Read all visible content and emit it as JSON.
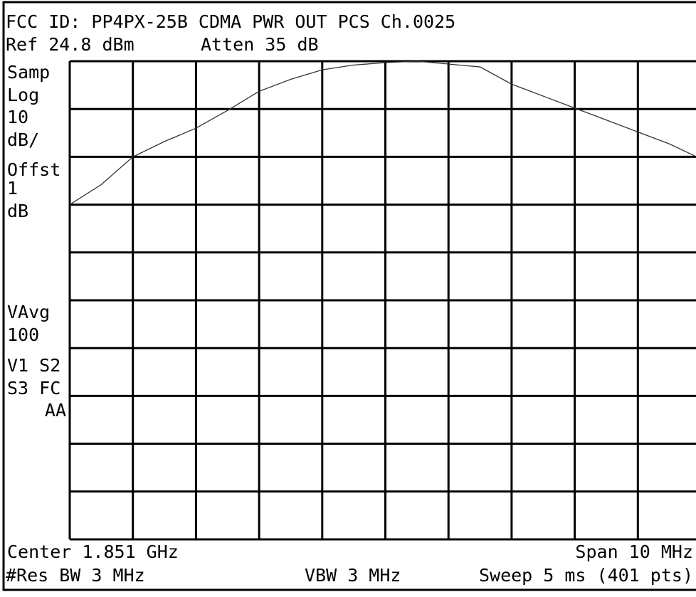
{
  "chart_data": {
    "type": "line",
    "title": "FCC ID: PP4PX-25B CDMA PWR OUT PCS Ch.0025",
    "header": [
      "Ref 24.8 dBm",
      "Atten 35 dB"
    ],
    "side_labels": [
      "Samp",
      "Log",
      "10",
      "dB/",
      "Offst",
      "1",
      "dB",
      "VAvg",
      "100",
      "V1 S2",
      "S3 FC",
      "AA"
    ],
    "footer": [
      "Center 1.851 GHz",
      "Span 10 MHz",
      "#Res BW 3 MHz",
      "VBW 3 MHz",
      "Sweep 5 ms (401 pts)"
    ],
    "x": [
      1846,
      1846.5,
      1847,
      1847.5,
      1848,
      1848.5,
      1849,
      1849.5,
      1850,
      1850.5,
      1851,
      1851.5,
      1852,
      1852.5,
      1853,
      1853.5,
      1854,
      1854.5,
      1855,
      1855.5,
      1855.9
    ],
    "values": [
      -5.2,
      -1,
      4.8,
      8,
      10.8,
      14.5,
      18.5,
      21,
      23,
      24,
      24.5,
      24.8,
      24.2,
      23.6,
      20,
      17.5,
      15,
      12.5,
      10,
      7.5,
      5
    ],
    "color": "#333333",
    "xlim": [
      1846,
      1856
    ],
    "ylim": [
      -75.2,
      24.8
    ],
    "xticks": [
      1846,
      1847,
      1848,
      1849,
      1850,
      1851,
      1852,
      1853,
      1854,
      1855,
      1856
    ],
    "yticks": [
      -75.2,
      -65.2,
      -55.2,
      -45.2,
      -35.2,
      -25.2,
      -15.2,
      -5.2,
      4.8,
      14.8,
      24.8
    ],
    "grid": true
  }
}
